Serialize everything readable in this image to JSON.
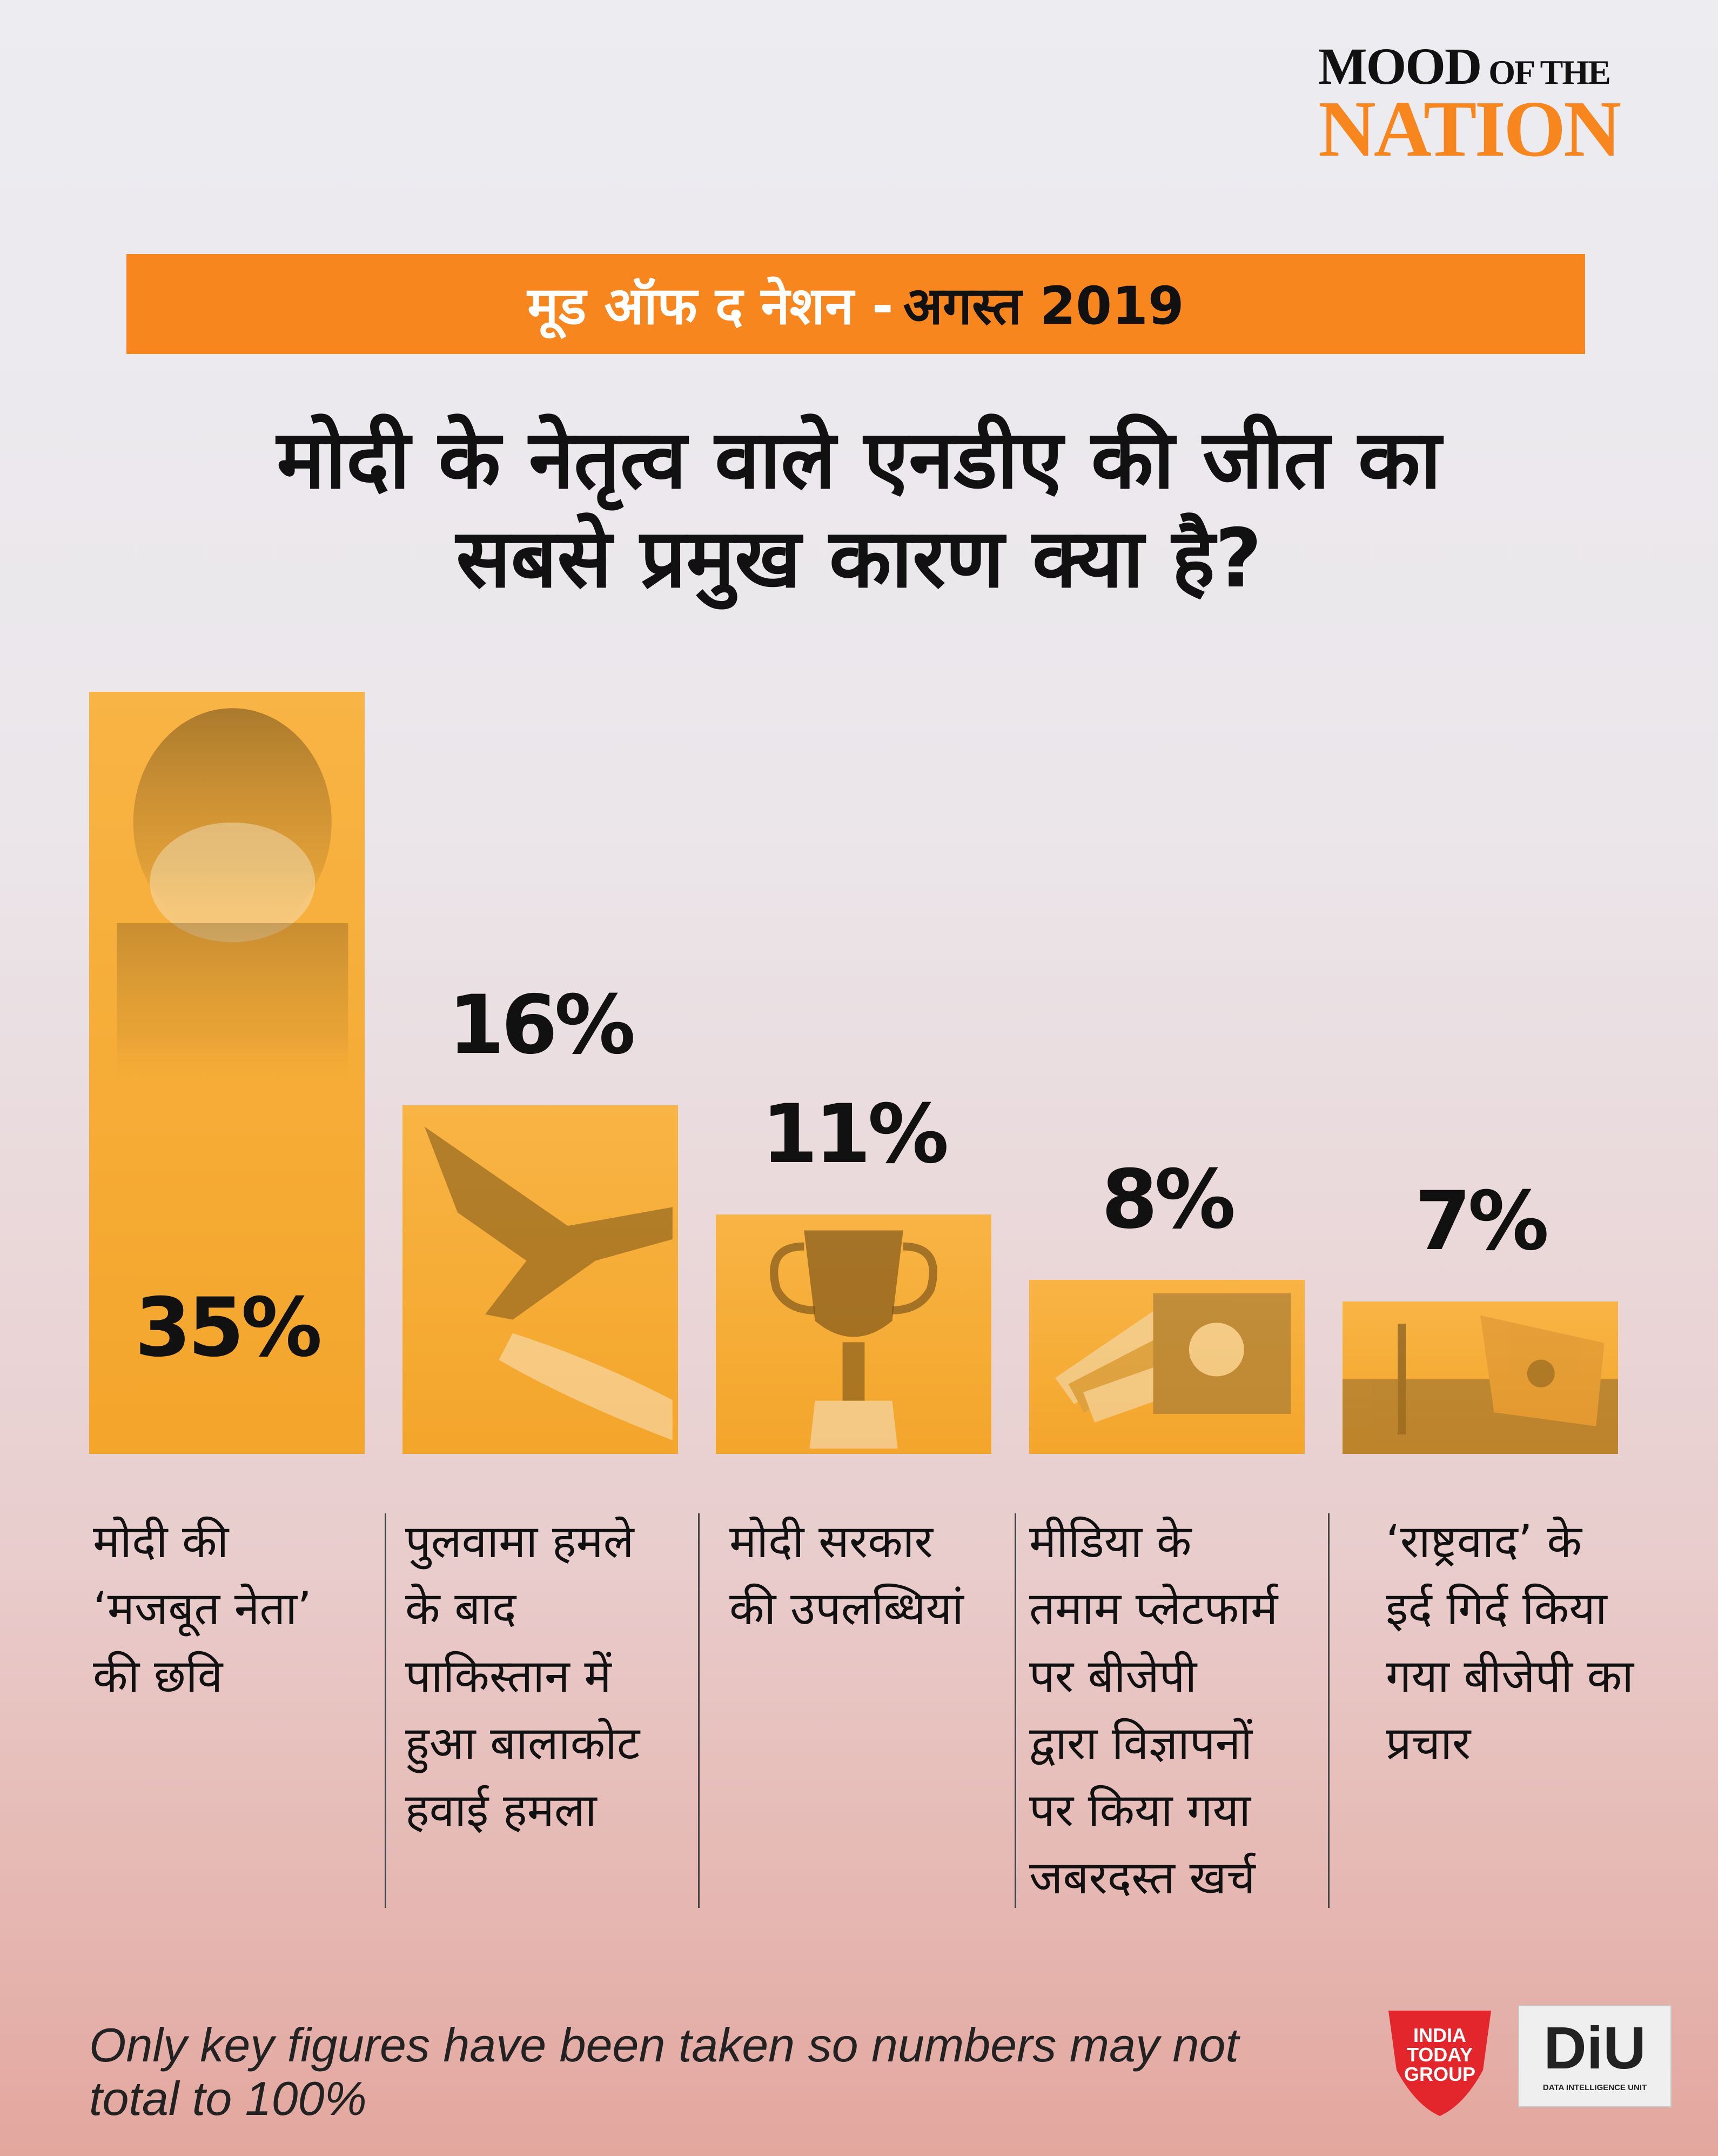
{
  "brand": {
    "line1_big": "MOOD",
    "line1_small": " OF THE",
    "line2": "NATION"
  },
  "banner": {
    "white": "मूड ऑफ द नेशन -",
    "black": "अगस्त 2019"
  },
  "title": {
    "line1": "मोदी के नेतृत्व वाले एनडीए की जीत का",
    "line2": "सबसे प्रमुख कारण क्या है?"
  },
  "chart_data": {
    "type": "bar",
    "title": "मोदी के नेतृत्व वाले एनडीए की जीत का सबसे प्रमुख कारण क्या है?",
    "categories": [
      "मोदी की ‘मजबूत नेता’ की छवि",
      "पुलवामा हमले के बाद पाकिस्तान में हुआ बालाकोट हवाई हमला",
      "मोदी सरकार की उपलब्धियां",
      "मीडिया के तमाम प्लेटफार्म पर बीजेपी द्वारा विज्ञापनों पर किया गया जबरदस्त खर्च",
      "‘राष्ट्रवाद’ के इर्द गिर्द किया गया बीजेपी का प्रचार"
    ],
    "values": [
      35,
      16,
      11,
      8,
      7
    ],
    "value_labels": [
      "35%",
      "16%",
      "11%",
      "8%",
      "7%"
    ],
    "ylim": [
      0,
      35
    ],
    "color": "#f6a92f",
    "grid": false,
    "legend": "none"
  },
  "category_lines": [
    [
      "मोदी की",
      "‘मजबूत नेता’",
      "की छवि"
    ],
    [
      "पुलवामा हमले",
      "के बाद",
      "पाकिस्तान में",
      "हुआ बालाकोट",
      "हवाई हमला"
    ],
    [
      "मोदी सरकार",
      "की उपलब्धियां"
    ],
    [
      "मीडिया के",
      "तमाम प्लेटफार्म",
      "पर बीजेपी",
      "द्वारा विज्ञापनों",
      "पर किया गया",
      "जबरदस्त खर्च"
    ],
    [
      "‘राष्ट्रवाद’ के",
      "इर्द गिर्द किया",
      "गया बीजेपी का",
      "प्रचार"
    ]
  ],
  "bar_images": [
    "leader-portrait",
    "fighter-jet",
    "trophy",
    "currency-notes",
    "flag-rally"
  ],
  "footnote": "Only key figures have been taken so numbers may not total to 100%",
  "logos": {
    "india_today": {
      "l1": "INDIA",
      "l2": "TODAY",
      "l3": "GROUP"
    },
    "diu": {
      "big": "DiU",
      "small": "DATA INTELLIGENCE UNIT"
    }
  },
  "colors": {
    "accent": "#f7861f",
    "bar": "#f6a92f",
    "text": "#111111"
  }
}
